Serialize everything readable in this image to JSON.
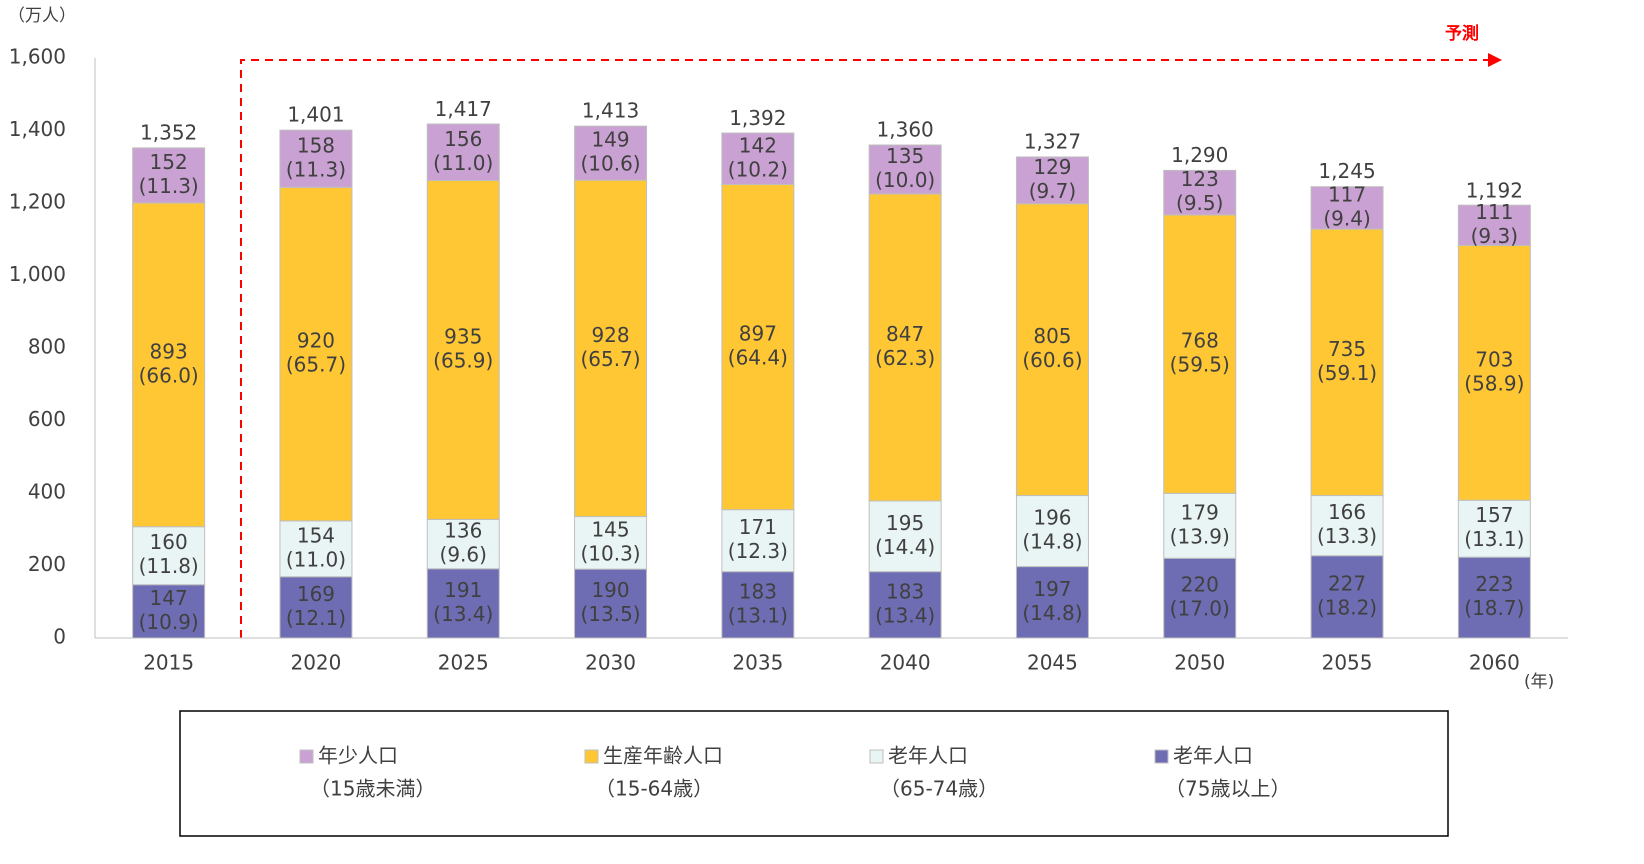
{
  "chart_data": {
    "type": "stacked_bar",
    "y_unit_label": "（万人）",
    "x_unit_label": "(年)",
    "annotation": "予測",
    "categories": [
      "2015",
      "2020",
      "2025",
      "2030",
      "2035",
      "2040",
      "2045",
      "2050",
      "2055",
      "2060"
    ],
    "series": [
      {
        "name": "老年人口",
        "name_note": "（75歳以上）",
        "color": "#6e6db4",
        "values": [
          147,
          169,
          191,
          190,
          183,
          183,
          197,
          220,
          227,
          223
        ],
        "shares": [
          10.9,
          12.1,
          13.4,
          13.5,
          13.1,
          13.4,
          14.8,
          17.0,
          18.2,
          18.7
        ],
        "share_labels": [
          "(10.9)",
          "(12.1)",
          "(13.4)",
          "(13.5)",
          "(13.1)",
          "(13.4)",
          "(14.8)",
          "(17.0)",
          "(18.2)",
          "(18.7)"
        ]
      },
      {
        "name": "老年人口",
        "name_note": "（65-74歳）",
        "color": "#e9f4f4",
        "values": [
          160,
          154,
          136,
          145,
          171,
          195,
          196,
          179,
          166,
          157
        ],
        "shares": [
          11.8,
          11.0,
          9.6,
          10.3,
          12.3,
          14.4,
          14.8,
          13.9,
          13.3,
          13.1
        ],
        "share_labels": [
          "(11.8)",
          "(11.0)",
          "(9.6)",
          "(10.3)",
          "(12.3)",
          "(14.4)",
          "(14.8)",
          "(13.9)",
          "(13.3)",
          "(13.1)"
        ]
      },
      {
        "name": "生産年齢人口",
        "name_note": "（15-64歳）",
        "color": "#ffc734",
        "values": [
          893,
          920,
          935,
          928,
          897,
          847,
          805,
          768,
          735,
          703
        ],
        "shares": [
          66.0,
          65.7,
          65.9,
          65.7,
          64.4,
          62.3,
          60.6,
          59.5,
          59.1,
          58.9
        ],
        "share_labels": [
          "(66.0)",
          "(65.7)",
          "(65.9)",
          "(65.7)",
          "(64.4)",
          "(62.3)",
          "(60.6)",
          "(59.5)",
          "(59.1)",
          "(58.9)"
        ]
      },
      {
        "name": "年少人口",
        "name_note": "（15歳未満）",
        "color": "#c9a1d2",
        "values": [
          152,
          158,
          156,
          149,
          142,
          135,
          129,
          123,
          117,
          111
        ],
        "shares": [
          11.3,
          11.3,
          11.0,
          10.6,
          10.2,
          10.0,
          9.7,
          9.5,
          9.4,
          9.3
        ],
        "share_labels": [
          "(11.3)",
          "(11.3)",
          "(11.0)",
          "(10.6)",
          "(10.2)",
          "(10.0)",
          "(9.7)",
          "(9.5)",
          "(9.4)",
          "(9.3)"
        ]
      }
    ],
    "totals": [
      1352,
      1401,
      1417,
      1413,
      1392,
      1360,
      1327,
      1290,
      1245,
      1192
    ],
    "total_labels": [
      "1,352",
      "1,401",
      "1,417",
      "1,413",
      "1,392",
      "1,360",
      "1,327",
      "1,290",
      "1,245",
      "1,192"
    ],
    "ylim": [
      0,
      1600
    ],
    "yticks": [
      0,
      200,
      400,
      600,
      800,
      {
        "value": 1000,
        "label": "1,000"
      },
      {
        "value": 1200,
        "label": "1,200"
      },
      {
        "value": 1400,
        "label": "1,400"
      },
      {
        "value": 1600,
        "label": "1,600"
      }
    ],
    "grid": false,
    "legend": "bottom"
  }
}
